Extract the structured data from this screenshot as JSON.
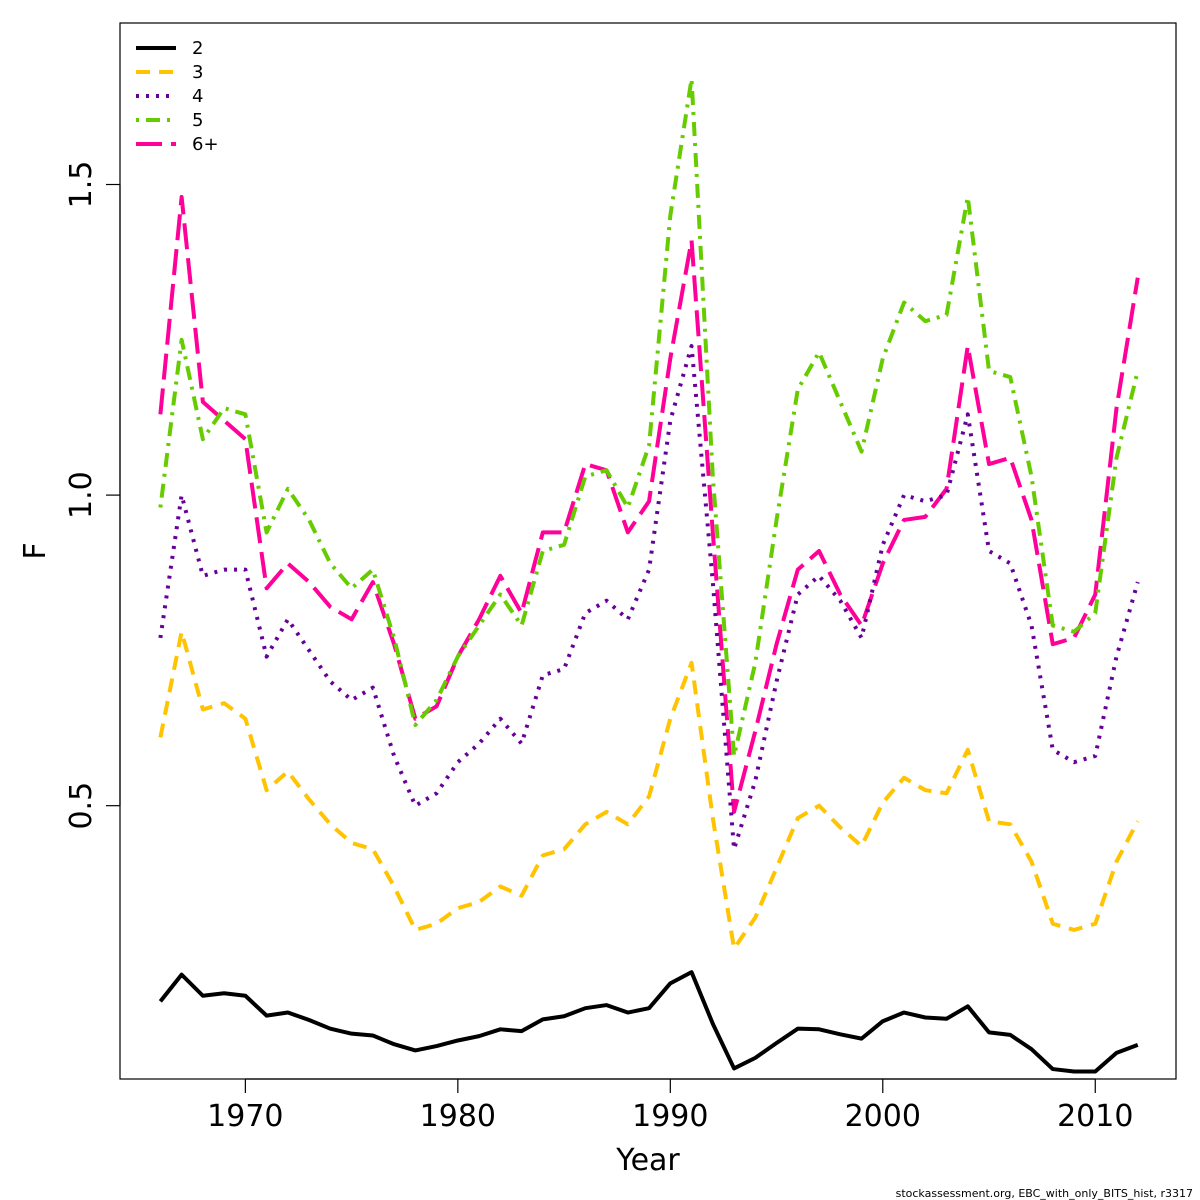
{
  "chart_data": {
    "type": "line",
    "title": "",
    "xlabel": "Year",
    "ylabel": "F",
    "xlim": [
      1964.1,
      2013.8
    ],
    "ylim": [
      0.06,
      1.76
    ],
    "xticks": [
      1970,
      1980,
      1990,
      2000,
      2010
    ],
    "xtick_labels": [
      "1970",
      "1980",
      "1990",
      "2000",
      "2010"
    ],
    "yticks": [
      0.5,
      1.0,
      1.5
    ],
    "ytick_labels": [
      "0.5",
      "1.0",
      "1.5"
    ],
    "grid": false,
    "legend_position": "top-left",
    "x": [
      1966,
      1967,
      1968,
      1969,
      1970,
      1971,
      1972,
      1973,
      1974,
      1975,
      1976,
      1977,
      1978,
      1979,
      1980,
      1981,
      1982,
      1983,
      1984,
      1985,
      1986,
      1987,
      1988,
      1989,
      1990,
      1991,
      1992,
      1993,
      1994,
      1995,
      1996,
      1997,
      1998,
      1999,
      2000,
      2001,
      2002,
      2003,
      2004,
      2005,
      2006,
      2007,
      2008,
      2009,
      2010,
      2011,
      2012
    ],
    "series": [
      {
        "name": "2",
        "color": "#000000",
        "dash": "solid",
        "values": [
          0.185,
          0.228,
          0.194,
          0.198,
          0.194,
          0.162,
          0.167,
          0.155,
          0.141,
          0.133,
          0.13,
          0.116,
          0.106,
          0.113,
          0.122,
          0.129,
          0.14,
          0.137,
          0.156,
          0.161,
          0.174,
          0.179,
          0.167,
          0.174,
          0.214,
          0.232,
          0.149,
          0.077,
          0.094,
          0.118,
          0.141,
          0.14,
          0.132,
          0.125,
          0.153,
          0.167,
          0.159,
          0.157,
          0.177,
          0.135,
          0.131,
          0.108,
          0.076,
          0.072,
          0.072,
          0.102,
          0.115
        ]
      },
      {
        "name": "3",
        "color": "#FFC300",
        "dash": "dashed",
        "values": [
          0.61,
          0.78,
          0.655,
          0.665,
          0.64,
          0.525,
          0.555,
          0.51,
          0.47,
          0.44,
          0.43,
          0.37,
          0.3,
          0.31,
          0.335,
          0.345,
          0.37,
          0.355,
          0.42,
          0.43,
          0.47,
          0.49,
          0.47,
          0.515,
          0.64,
          0.73,
          0.48,
          0.27,
          0.32,
          0.4,
          0.48,
          0.5,
          0.465,
          0.435,
          0.505,
          0.545,
          0.525,
          0.52,
          0.59,
          0.475,
          0.47,
          0.41,
          0.31,
          0.3,
          0.31,
          0.41,
          0.475
        ]
      },
      {
        "name": "4",
        "color": "#660099",
        "dash": "dotted",
        "values": [
          0.77,
          1.0,
          0.87,
          0.88,
          0.88,
          0.74,
          0.8,
          0.75,
          0.7,
          0.67,
          0.69,
          0.58,
          0.5,
          0.52,
          0.57,
          0.6,
          0.64,
          0.6,
          0.71,
          0.72,
          0.81,
          0.83,
          0.8,
          0.88,
          1.12,
          1.24,
          0.86,
          0.43,
          0.54,
          0.7,
          0.84,
          0.87,
          0.83,
          0.77,
          0.92,
          1.0,
          0.99,
          1.0,
          1.13,
          0.91,
          0.89,
          0.79,
          0.59,
          0.57,
          0.58,
          0.74,
          0.86
        ]
      },
      {
        "name": "5",
        "color": "#66CC00",
        "dash": "dashdot",
        "values": [
          0.98,
          1.25,
          1.09,
          1.14,
          1.13,
          0.94,
          1.01,
          0.96,
          0.89,
          0.85,
          0.88,
          0.77,
          0.63,
          0.67,
          0.74,
          0.79,
          0.84,
          0.79,
          0.91,
          0.92,
          1.03,
          1.04,
          0.98,
          1.08,
          1.45,
          1.67,
          1.03,
          0.58,
          0.73,
          0.96,
          1.17,
          1.23,
          1.15,
          1.07,
          1.22,
          1.31,
          1.28,
          1.29,
          1.48,
          1.2,
          1.19,
          1.03,
          0.79,
          0.78,
          0.81,
          1.06,
          1.2
        ]
      },
      {
        "name": "6+",
        "color": "#FF0099",
        "dash": "longdash",
        "values": [
          1.13,
          1.48,
          1.15,
          1.12,
          1.09,
          0.85,
          0.89,
          0.86,
          0.82,
          0.8,
          0.86,
          0.76,
          0.64,
          0.66,
          0.74,
          0.8,
          0.87,
          0.81,
          0.94,
          0.94,
          1.05,
          1.04,
          0.94,
          0.99,
          1.22,
          1.41,
          0.94,
          0.49,
          0.62,
          0.76,
          0.88,
          0.91,
          0.84,
          0.79,
          0.89,
          0.96,
          0.965,
          1.01,
          1.24,
          1.05,
          1.06,
          0.96,
          0.76,
          0.77,
          0.84,
          1.14,
          1.35
        ]
      }
    ]
  },
  "footnote": "stockassessment.org, EBC_with_only_BITS_hist, r3317"
}
